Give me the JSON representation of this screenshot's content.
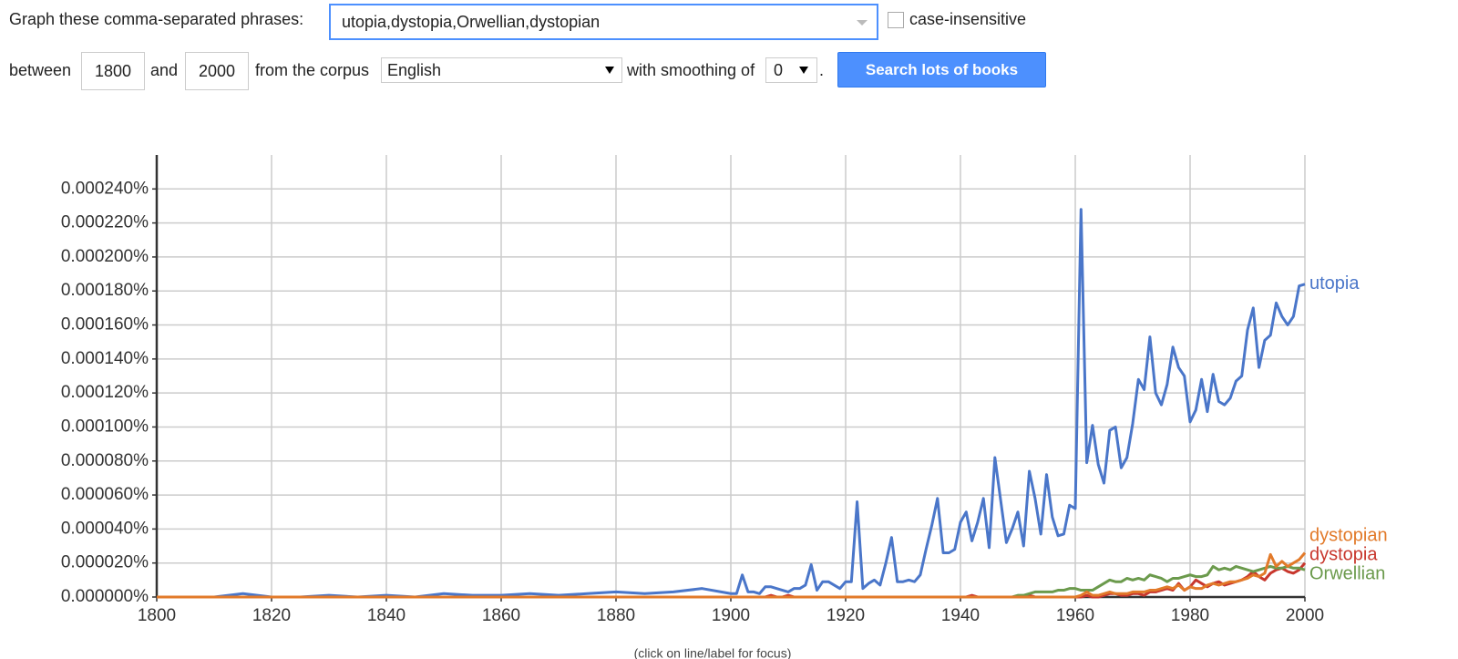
{
  "form": {
    "phrases_label": "Graph these comma-separated phrases:",
    "phrases": "utopia,dystopia,Orwellian,dystopian",
    "case_label": "case-insensitive",
    "between": "between",
    "start_year": "1800",
    "and": "and",
    "end_year": "2000",
    "corpus_label": "from the corpus",
    "corpus": "English",
    "smoothing_label": "with smoothing of",
    "smoothing": "0",
    "period": ".",
    "button": "Search lots of books"
  },
  "chart_data": {
    "type": "line",
    "x": [
      1800,
      1805,
      1810,
      1815,
      1820,
      1825,
      1830,
      1835,
      1840,
      1845,
      1850,
      1855,
      1860,
      1865,
      1870,
      1875,
      1880,
      1885,
      1890,
      1895,
      1900,
      1901,
      1902,
      1903,
      1904,
      1905,
      1906,
      1907,
      1908,
      1909,
      1910,
      1911,
      1912,
      1913,
      1914,
      1915,
      1916,
      1917,
      1918,
      1919,
      1920,
      1921,
      1922,
      1923,
      1924,
      1925,
      1926,
      1927,
      1928,
      1929,
      1930,
      1931,
      1932,
      1933,
      1934,
      1935,
      1936,
      1937,
      1938,
      1939,
      1940,
      1941,
      1942,
      1943,
      1944,
      1945,
      1946,
      1947,
      1948,
      1949,
      1950,
      1951,
      1952,
      1953,
      1954,
      1955,
      1956,
      1957,
      1958,
      1959,
      1960,
      1961,
      1962,
      1963,
      1964,
      1965,
      1966,
      1967,
      1968,
      1969,
      1970,
      1971,
      1972,
      1973,
      1974,
      1975,
      1976,
      1977,
      1978,
      1979,
      1980,
      1981,
      1982,
      1983,
      1984,
      1985,
      1986,
      1987,
      1988,
      1989,
      1990,
      1991,
      1992,
      1993,
      1994,
      1995,
      1996,
      1997,
      1998,
      1999,
      2000
    ],
    "series": [
      {
        "name": "utopia",
        "color": "#4a76c9",
        "values": [
          0,
          0,
          0,
          2e-06,
          0,
          0,
          1e-06,
          0,
          1e-06,
          0,
          2e-06,
          1e-06,
          1e-06,
          2e-06,
          1e-06,
          2e-06,
          3e-06,
          2e-06,
          3e-06,
          5e-06,
          2e-06,
          2e-06,
          1.3e-05,
          3e-06,
          3e-06,
          2e-06,
          6e-06,
          6e-06,
          5e-06,
          4e-06,
          3e-06,
          5e-06,
          5e-06,
          7e-06,
          1.9e-05,
          4e-06,
          9e-06,
          9e-06,
          7e-06,
          5e-06,
          9e-06,
          9e-06,
          5.6e-05,
          5e-06,
          8e-06,
          1e-05,
          7e-06,
          2e-05,
          3.5e-05,
          9e-06,
          9e-06,
          1e-05,
          9e-06,
          1.3e-05,
          2.8e-05,
          4.2e-05,
          5.8e-05,
          2.6e-05,
          2.6e-05,
          2.8e-05,
          4.4e-05,
          5e-05,
          3.3e-05,
          4.4e-05,
          5.8e-05,
          2.9e-05,
          8.2e-05,
          5.7e-05,
          3.2e-05,
          4e-05,
          5e-05,
          3e-05,
          7.4e-05,
          5.8e-05,
          3.7e-05,
          7.2e-05,
          4.7e-05,
          3.6e-05,
          3.7e-05,
          5.4e-05,
          5.2e-05,
          0.000228,
          7.9e-05,
          0.000101,
          7.8e-05,
          6.7e-05,
          9.8e-05,
          0.0001,
          7.6e-05,
          8.2e-05,
          0.000102,
          0.000128,
          0.000122,
          0.000153,
          0.00012,
          0.000113,
          0.000125,
          0.000147,
          0.000135,
          0.00013,
          0.000103,
          0.00011,
          0.000128,
          0.000109,
          0.000131,
          0.000115,
          0.000113,
          0.000117,
          0.000127,
          0.00013,
          0.000157,
          0.00017,
          0.000135,
          0.000151,
          0.000154,
          0.000173,
          0.000165,
          0.00016,
          0.000165,
          0.000183,
          0.000184
        ]
      },
      {
        "name": "dystopia",
        "color": "#c8372d",
        "values": [
          0,
          0,
          0,
          0,
          0,
          0,
          0,
          0,
          0,
          0,
          0,
          0,
          0,
          0,
          0,
          0,
          0,
          0,
          0,
          0,
          0,
          0,
          0,
          0,
          0,
          0,
          0,
          1e-06,
          0,
          0,
          1e-06,
          0,
          0,
          0,
          0,
          0,
          0,
          0,
          0,
          0,
          0,
          0,
          0,
          0,
          0,
          0,
          0,
          0,
          0,
          0,
          0,
          0,
          0,
          0,
          0,
          0,
          0,
          0,
          0,
          0,
          0,
          0,
          1e-06,
          0,
          0,
          0,
          0,
          0,
          0,
          0,
          0,
          0,
          1e-06,
          0,
          0,
          0,
          0,
          0,
          0,
          0,
          0,
          0,
          1e-06,
          0,
          0,
          1e-06,
          2e-06,
          2e-06,
          1e-06,
          1e-06,
          2e-06,
          2e-06,
          1e-06,
          3e-06,
          3e-06,
          4e-06,
          5e-06,
          4e-06,
          8e-06,
          4e-06,
          6e-06,
          1e-05,
          8e-06,
          6e-06,
          8e-06,
          9e-06,
          7e-06,
          8e-06,
          9e-06,
          1e-05,
          1.2e-05,
          1.5e-05,
          1.2e-05,
          1e-05,
          1.4e-05,
          1.6e-05,
          1.7e-05,
          1.5e-05,
          1.4e-05,
          1.6e-05,
          2e-05
        ]
      },
      {
        "name": "Orwellian",
        "color": "#6b9a4c",
        "values": [
          0,
          0,
          0,
          0,
          0,
          0,
          0,
          0,
          0,
          0,
          0,
          0,
          0,
          0,
          0,
          0,
          0,
          0,
          0,
          0,
          0,
          0,
          0,
          0,
          0,
          0,
          0,
          0,
          0,
          0,
          0,
          0,
          0,
          0,
          0,
          0,
          0,
          0,
          0,
          0,
          0,
          0,
          0,
          0,
          0,
          0,
          0,
          0,
          0,
          0,
          0,
          0,
          0,
          0,
          0,
          0,
          0,
          0,
          0,
          0,
          0,
          0,
          0,
          0,
          0,
          0,
          0,
          0,
          0,
          0,
          1e-06,
          1e-06,
          2e-06,
          3e-06,
          3e-06,
          3e-06,
          3e-06,
          4e-06,
          4e-06,
          5e-06,
          5e-06,
          4e-06,
          4e-06,
          4e-06,
          6e-06,
          8e-06,
          1e-05,
          9e-06,
          9e-06,
          1.1e-05,
          1e-05,
          1.1e-05,
          1e-05,
          1.3e-05,
          1.2e-05,
          1.1e-05,
          9e-06,
          1.1e-05,
          1.1e-05,
          1.2e-05,
          1.3e-05,
          1.2e-05,
          1.2e-05,
          1.3e-05,
          1.8e-05,
          1.6e-05,
          1.7e-05,
          1.6e-05,
          1.8e-05,
          1.7e-05,
          1.6e-05,
          1.5e-05,
          1.6e-05,
          1.7e-05,
          1.8e-05,
          1.7e-05,
          1.7e-05,
          1.8e-05,
          1.7e-05,
          1.7e-05,
          1.6e-05
        ]
      },
      {
        "name": "dystopian",
        "color": "#e27a2a",
        "values": [
          0,
          0,
          0,
          0,
          0,
          0,
          0,
          0,
          0,
          0,
          0,
          0,
          0,
          0,
          0,
          0,
          0,
          0,
          0,
          0,
          0,
          0,
          0,
          0,
          0,
          0,
          0,
          0,
          0,
          0,
          0,
          0,
          0,
          0,
          0,
          0,
          0,
          0,
          0,
          0,
          0,
          0,
          0,
          0,
          0,
          0,
          0,
          0,
          0,
          0,
          0,
          0,
          0,
          0,
          0,
          0,
          0,
          0,
          0,
          0,
          0,
          0,
          0,
          0,
          0,
          0,
          0,
          0,
          0,
          0,
          0,
          0,
          0,
          0,
          0,
          0,
          0,
          0,
          0,
          0,
          0,
          1e-06,
          3e-06,
          1e-06,
          1e-06,
          2e-06,
          3e-06,
          2e-06,
          2e-06,
          2e-06,
          3e-06,
          3e-06,
          3e-06,
          4e-06,
          4e-06,
          5e-06,
          6e-06,
          5e-06,
          7e-06,
          4e-06,
          6e-06,
          5e-06,
          5e-06,
          7e-06,
          8e-06,
          7e-06,
          8e-06,
          9e-06,
          9e-06,
          1e-05,
          1.1e-05,
          1.3e-05,
          1.2e-05,
          1.4e-05,
          2.5e-05,
          1.8e-05,
          2.1e-05,
          1.8e-05,
          2e-05,
          2.2e-05,
          2.6e-05
        ]
      }
    ],
    "xlim": [
      1800,
      2000
    ],
    "xticks": [
      1800,
      1820,
      1840,
      1860,
      1880,
      1900,
      1920,
      1940,
      1960,
      1980,
      2000
    ],
    "ylim": [
      0,
      0.00026
    ],
    "yticks": [
      {
        "value": 0,
        "label": "0.000000%"
      },
      {
        "value": 2e-05,
        "label": "0.000020%"
      },
      {
        "value": 4e-05,
        "label": "0.000040%"
      },
      {
        "value": 6e-05,
        "label": "0.000060%"
      },
      {
        "value": 8e-05,
        "label": "0.000080%"
      },
      {
        "value": 0.0001,
        "label": "0.000100%"
      },
      {
        "value": 0.00012,
        "label": "0.000120%"
      },
      {
        "value": 0.00014,
        "label": "0.000140%"
      },
      {
        "value": 0.00016,
        "label": "0.000160%"
      },
      {
        "value": 0.00018,
        "label": "0.000180%"
      },
      {
        "value": 0.0002,
        "label": "0.000200%"
      },
      {
        "value": 0.00022,
        "label": "0.000220%"
      },
      {
        "value": 0.00024,
        "label": "0.000240%"
      }
    ],
    "grid": true,
    "note": "(click on line/label for focus)"
  }
}
